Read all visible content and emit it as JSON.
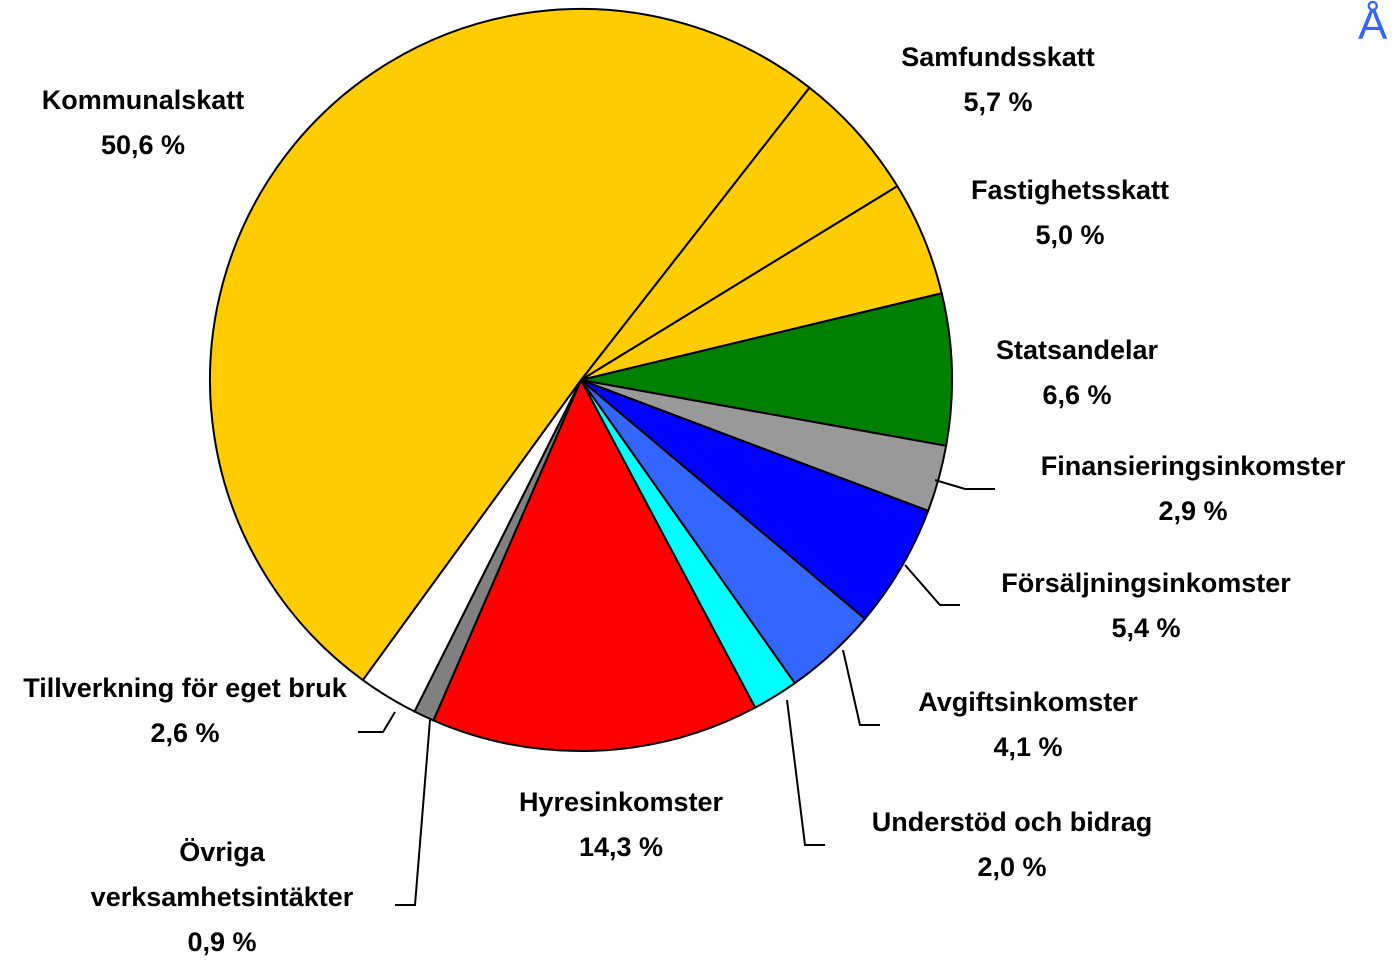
{
  "chart_data": {
    "type": "pie",
    "categories": [
      "Samfundsskatt",
      "Fastighetsskatt",
      "Statsandelar",
      "Finansieringsinkomster",
      "Försäljningsinkomster",
      "Avgiftsinkomster",
      "Understöd och bidrag",
      "Hyresinkomster",
      "Övriga verksamhetsintäkter",
      "Tillverkning för eget bruk",
      "Kommunalskatt"
    ],
    "values": [
      5.7,
      5.0,
      6.6,
      2.9,
      5.4,
      4.1,
      2.0,
      14.3,
      0.9,
      2.6,
      50.6
    ],
    "value_labels": [
      "5,7 %",
      "5,0 %",
      "6,6 %",
      "2,9 %",
      "5,4 %",
      "4,1 %",
      "2,0 %",
      "14,3 %",
      "0,9 %",
      "2,6 %",
      "50,6 %"
    ],
    "colors": [
      "#ffcc00",
      "#ffcc00",
      "#008000",
      "#999999",
      "#0000ff",
      "#3366ff",
      "#00ffff",
      "#ff0000",
      "#808080",
      "#ffffff",
      "#ffcc00"
    ]
  },
  "corner_text": "Å"
}
